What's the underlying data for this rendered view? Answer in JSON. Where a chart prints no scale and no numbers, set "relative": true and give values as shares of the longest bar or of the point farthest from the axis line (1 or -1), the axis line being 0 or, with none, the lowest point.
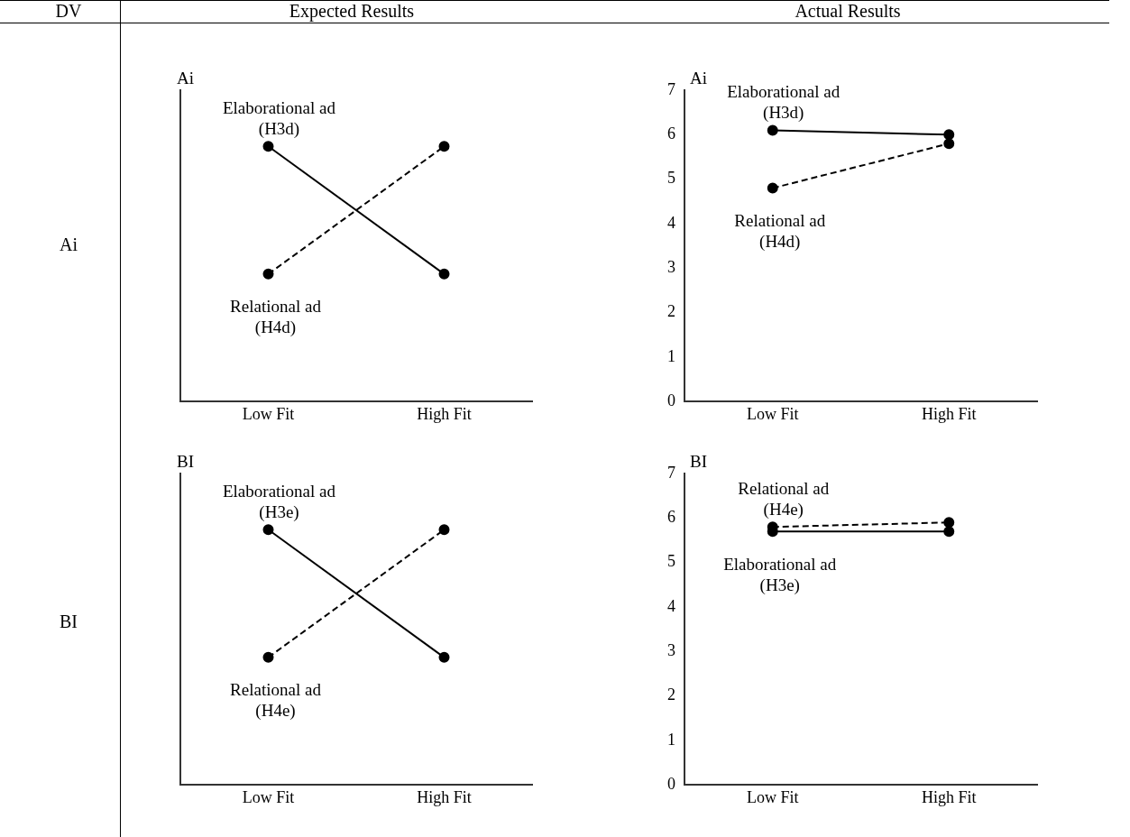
{
  "chart_data": [
    {
      "type": "other",
      "annotations": [
        "DV",
        "Expected Results",
        "Actual Results",
        "Ai",
        "BI"
      ]
    },
    {
      "type": "line",
      "relative": true,
      "ylabel": "Ai",
      "categories": [
        "Low Fit",
        "High Fit"
      ],
      "marker": "circle",
      "series": [
        {
          "name": "Elaborational ad (H3d)",
          "color": "#000000",
          "line_style": "solid",
          "values": [
            1,
            0.5
          ]
        },
        {
          "name": "Relational ad (H4d)",
          "color": "#000000",
          "line_style": "dashed",
          "values": [
            0.5,
            1
          ]
        }
      ]
    },
    {
      "type": "line",
      "ylabel": "Ai",
      "categories": [
        "Low Fit",
        "High Fit"
      ],
      "marker": "circle",
      "ylim": [
        0,
        7
      ],
      "yticks": [
        0,
        1,
        2,
        3,
        4,
        5,
        6,
        7
      ],
      "series": [
        {
          "name": "Elaborational ad (H3d)",
          "color": "#000000",
          "line_style": "solid",
          "values": [
            6.1,
            6.0
          ]
        },
        {
          "name": "Relational ad (H4d)",
          "color": "#000000",
          "line_style": "dashed",
          "values": [
            4.8,
            5.8
          ]
        }
      ]
    },
    {
      "type": "line",
      "relative": true,
      "ylabel": "BI",
      "categories": [
        "Low Fit",
        "High Fit"
      ],
      "marker": "circle",
      "series": [
        {
          "name": "Elaborational ad (H3e)",
          "color": "#000000",
          "line_style": "solid",
          "values": [
            1,
            0.5
          ]
        },
        {
          "name": "Relational ad (H4e)",
          "color": "#000000",
          "line_style": "dashed",
          "values": [
            0.5,
            1
          ]
        }
      ]
    },
    {
      "type": "line",
      "ylabel": "BI",
      "categories": [
        "Low Fit",
        "High Fit"
      ],
      "marker": "circle",
      "ylim": [
        0,
        7
      ],
      "yticks": [
        0,
        1,
        2,
        3,
        4,
        5,
        6,
        7
      ],
      "series": [
        {
          "name": "Elaborational ad (H3e)",
          "color": "#000000",
          "line_style": "solid",
          "values": [
            5.7,
            5.7
          ]
        },
        {
          "name": "Relational ad (H4e)",
          "color": "#000000",
          "line_style": "dashed",
          "values": [
            5.8,
            5.9
          ]
        }
      ]
    }
  ]
}
